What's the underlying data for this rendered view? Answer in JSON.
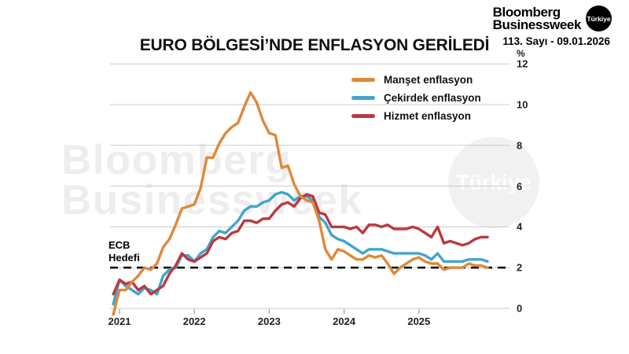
{
  "header": {
    "logo": {
      "line1": "Bloomberg",
      "line2": "Businessweek",
      "badge": "Türkiye"
    },
    "issue": "113. Sayı - 09.01.2026"
  },
  "title": "EURO BÖLGESİ’NDE ENFLASYON GERİLEDİ",
  "watermark": {
    "line1": "Bloomberg",
    "line2": "Businessweek",
    "badge": "Türkiye"
  },
  "annotation": {
    "line1": "ECB",
    "line2": "Hedefi"
  },
  "colors": {
    "brand_black": "#000000",
    "watermark_gray": "#ededed",
    "grid": "#c9c9c9",
    "axis_tick": "#9a9a9a",
    "target_line": "#111111"
  },
  "chart_data": {
    "type": "line",
    "title": "EURO BÖLGESİ’NDE ENFLASYON GERİLEDİ",
    "unit_label": "%",
    "grid": true,
    "legend_position": "top-right-inside",
    "ylim": [
      0,
      12
    ],
    "y_ticks": [
      0,
      2,
      4,
      6,
      8,
      10,
      12
    ],
    "x_tick_labels": [
      "2021",
      "2022",
      "2023",
      "2024",
      "2025"
    ],
    "x_start": "2020-12",
    "x_end": "2025-12",
    "x_frequency": "monthly",
    "reference_line": {
      "label": "ECB Hedefi",
      "value": 2,
      "style": "dashed",
      "color": "#111111"
    },
    "series": [
      {
        "name": "Manşet enflasyon",
        "color": "#E0883A",
        "values": [
          -0.3,
          0.9,
          0.9,
          1.3,
          1.6,
          2.0,
          1.9,
          2.2,
          3.0,
          3.4,
          4.1,
          4.9,
          5.0,
          5.1,
          5.9,
          7.4,
          7.4,
          8.1,
          8.6,
          8.9,
          9.1,
          9.9,
          10.6,
          10.1,
          9.2,
          8.6,
          8.5,
          6.9,
          7.0,
          6.1,
          5.5,
          5.3,
          5.2,
          4.3,
          2.9,
          2.4,
          2.9,
          2.8,
          2.6,
          2.4,
          2.4,
          2.6,
          2.5,
          2.6,
          2.2,
          1.7,
          2.0,
          2.2,
          2.4,
          2.5,
          2.3,
          2.2,
          2.2,
          1.9,
          2.0,
          2.0,
          2.0,
          2.2,
          2.1,
          2.1,
          2.0
        ]
      },
      {
        "name": "Çekirdek enflasyon",
        "color": "#41A5CB",
        "values": [
          0.2,
          1.4,
          1.1,
          0.9,
          0.7,
          1.0,
          0.9,
          0.7,
          1.6,
          1.9,
          2.0,
          2.6,
          2.6,
          2.3,
          2.7,
          2.9,
          3.5,
          3.8,
          3.7,
          4.0,
          4.3,
          4.8,
          5.0,
          5.0,
          5.2,
          5.3,
          5.6,
          5.7,
          5.6,
          5.3,
          5.5,
          5.5,
          5.3,
          4.5,
          4.2,
          3.6,
          3.4,
          3.3,
          3.1,
          2.9,
          2.7,
          2.9,
          2.9,
          2.9,
          2.8,
          2.7,
          2.7,
          2.7,
          2.7,
          2.7,
          2.6,
          2.4,
          2.7,
          2.3,
          2.3,
          2.3,
          2.3,
          2.4,
          2.4,
          2.4,
          2.3
        ]
      },
      {
        "name": "Hizmet enflasyon",
        "color": "#B93A40",
        "values": [
          0.7,
          1.4,
          1.2,
          1.3,
          0.9,
          1.1,
          0.7,
          0.9,
          1.1,
          1.7,
          2.1,
          2.7,
          2.4,
          2.3,
          2.5,
          2.7,
          3.3,
          3.5,
          3.4,
          3.7,
          3.8,
          4.3,
          4.3,
          4.2,
          4.4,
          4.4,
          4.8,
          5.1,
          5.2,
          5.0,
          5.4,
          5.6,
          5.5,
          4.7,
          4.6,
          4.0,
          4.0,
          4.0,
          3.9,
          4.0,
          3.7,
          4.1,
          4.1,
          4.0,
          4.1,
          3.9,
          3.9,
          3.9,
          4.0,
          3.9,
          3.7,
          3.5,
          4.0,
          3.2,
          3.3,
          3.2,
          3.1,
          3.2,
          3.4,
          3.5,
          3.5
        ]
      }
    ]
  }
}
